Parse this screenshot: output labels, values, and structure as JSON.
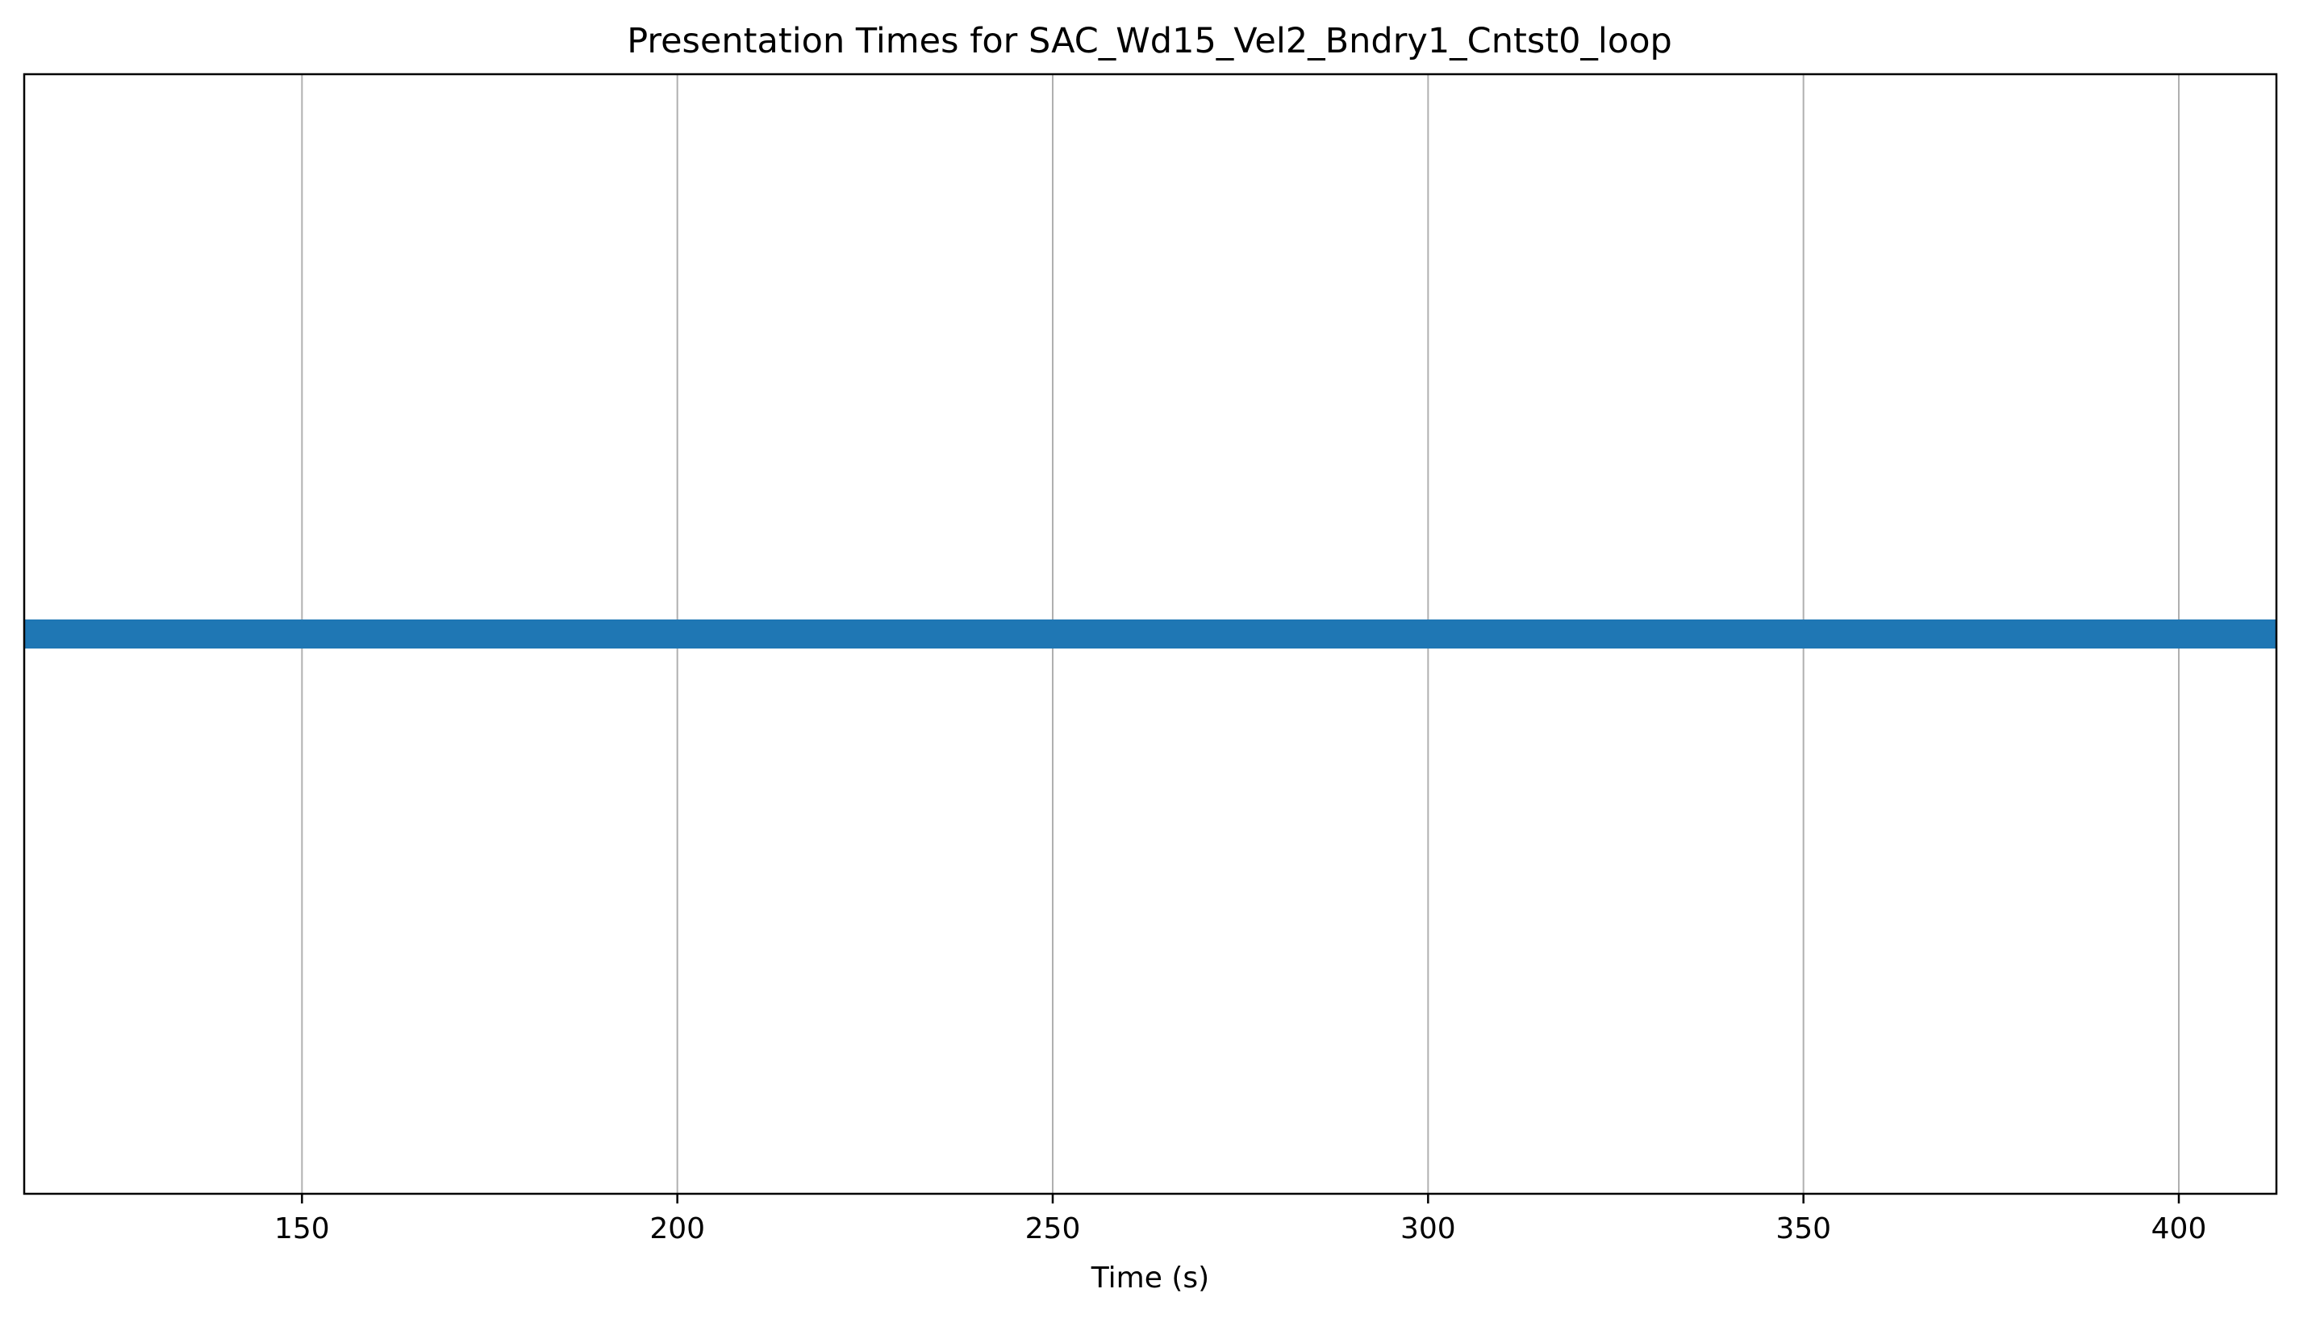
{
  "chart_data": {
    "type": "bar",
    "orientation": "horizontal-timeline",
    "title": "Presentation Times for SAC_Wd15_Vel2_Bndry1_Cntst0_loop",
    "xlabel": "Time (s)",
    "ylabel": "",
    "xlim": [
      113,
      413
    ],
    "xticks": [
      150,
      200,
      250,
      300,
      350,
      400
    ],
    "xtick_labels": [
      "150",
      "200",
      "250",
      "300",
      "350",
      "400"
    ],
    "grid": "x-major",
    "legend": "none",
    "bars": [
      {
        "start": 113,
        "end": 413
      }
    ],
    "colors": {
      "bar": "#1f77b4",
      "grid": "#b0b0b0",
      "axes": "#000000"
    }
  }
}
